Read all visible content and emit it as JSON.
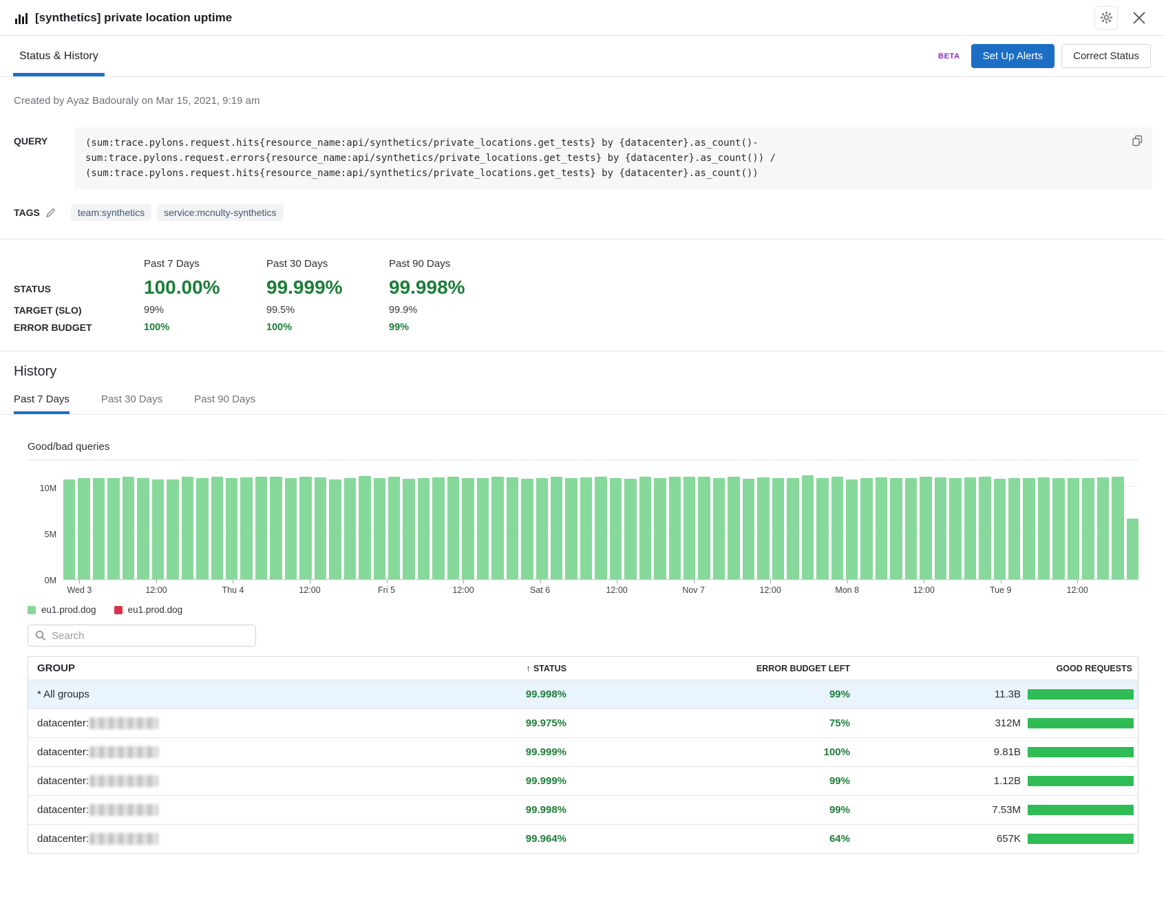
{
  "header": {
    "title": "[synthetics] private location uptime"
  },
  "toolbar": {
    "tab_label": "Status & History",
    "beta_badge": "BETA",
    "setup_alerts_label": "Set Up Alerts",
    "correct_status_label": "Correct Status"
  },
  "created_by": "Created by Ayaz Badouraly on Mar 15, 2021, 9:19 am",
  "query": {
    "label": "QUERY",
    "text": "(sum:trace.pylons.request.hits{resource_name:api/synthetics/private_locations.get_tests} by {datacenter}.as_count()-\nsum:trace.pylons.request.errors{resource_name:api/synthetics/private_locations.get_tests} by {datacenter}.as_count()) /\n(sum:trace.pylons.request.hits{resource_name:api/synthetics/private_locations.get_tests} by {datacenter}.as_count())"
  },
  "tags": {
    "label": "TAGS",
    "items": [
      "team:synthetics",
      "service:mcnulty-synthetics"
    ]
  },
  "status_summary": {
    "row_labels": {
      "status": "STATUS",
      "target": "TARGET (SLO)",
      "error_budget": "ERROR BUDGET"
    },
    "columns": [
      {
        "period": "Past 7 Days",
        "status": "100.00%",
        "target": "99%",
        "error_budget": "100%"
      },
      {
        "period": "Past 30 Days",
        "status": "99.999%",
        "target": "99.5%",
        "error_budget": "100%"
      },
      {
        "period": "Past 90 Days",
        "status": "99.998%",
        "target": "99.9%",
        "error_budget": "99%"
      }
    ]
  },
  "history": {
    "title": "History",
    "tabs": [
      {
        "label": "Past 7 Days",
        "active": true
      },
      {
        "label": "Past 30 Days",
        "active": false
      },
      {
        "label": "Past 90 Days",
        "active": false
      }
    ]
  },
  "chart_data": {
    "type": "bar",
    "title": "Good/bad queries",
    "y_tick_labels": [
      "0M",
      "5M",
      "10M"
    ],
    "ylim_millions": [
      0,
      11.5
    ],
    "grid": true,
    "legend_position": "bottom-left",
    "x_tick_labels": [
      "Wed 3",
      "12:00",
      "Thu 4",
      "12:00",
      "Fri 5",
      "12:00",
      "Sat 6",
      "12:00",
      "Nov 7",
      "12:00",
      "Mon 8",
      "12:00",
      "Tue 9",
      "12:00"
    ],
    "series": [
      {
        "name": "eu1.prod.dog",
        "role": "good-queries",
        "color": "#87d89b",
        "values_millions": [
          10.85,
          10.95,
          11.0,
          10.95,
          11.1,
          11.0,
          10.8,
          10.85,
          11.1,
          10.95,
          11.1,
          11.0,
          11.05,
          11.1,
          11.1,
          11.0,
          11.1,
          11.05,
          10.8,
          11.0,
          11.2,
          11.0,
          11.1,
          10.9,
          11.0,
          11.05,
          11.1,
          11.0,
          11.0,
          11.1,
          11.05,
          10.9,
          11.0,
          11.1,
          11.0,
          11.05,
          11.1,
          11.0,
          10.9,
          11.1,
          11.0,
          11.1,
          11.15,
          11.1,
          11.0,
          11.1,
          10.9,
          11.05,
          11.0,
          11.0,
          11.25,
          11.0,
          11.1,
          10.85,
          11.0,
          11.05,
          11.0,
          11.0,
          11.1,
          11.05,
          10.95,
          11.05,
          11.1,
          10.9,
          11.0,
          11.0,
          11.05,
          11.0,
          10.95,
          11.0,
          11.05,
          11.1,
          6.55
        ]
      },
      {
        "name": "eu1.prod.dog",
        "role": "bad-queries",
        "color": "#dc3148",
        "values_millions_uniform": 0
      }
    ]
  },
  "search": {
    "placeholder": "Search"
  },
  "table": {
    "columns": [
      "GROUP",
      "STATUS",
      "ERROR BUDGET LEFT",
      "GOOD REQUESTS"
    ],
    "sorted_by": "STATUS",
    "sort_direction": "ascending",
    "rows": [
      {
        "group": "* All groups",
        "redacted": false,
        "status": "99.998%",
        "error_budget_left": "99%",
        "good_requests": "11.3B",
        "highlight": true
      },
      {
        "group_prefix": "datacenter:",
        "redacted": true,
        "status": "99.975%",
        "error_budget_left": "75%",
        "good_requests": "312M",
        "highlight": false
      },
      {
        "group_prefix": "datacenter:",
        "redacted": true,
        "status": "99.999%",
        "error_budget_left": "100%",
        "good_requests": "9.81B",
        "highlight": false
      },
      {
        "group_prefix": "datacenter:",
        "redacted": true,
        "status": "99.999%",
        "error_budget_left": "99%",
        "good_requests": "1.12B",
        "highlight": false
      },
      {
        "group_prefix": "datacenter:",
        "redacted": true,
        "status": "99.998%",
        "error_budget_left": "99%",
        "good_requests": "7.53M",
        "highlight": false
      },
      {
        "group_prefix": "datacenter:",
        "redacted": true,
        "status": "99.964%",
        "error_budget_left": "64%",
        "good_requests": "657K",
        "highlight": false
      }
    ]
  },
  "colors": {
    "accent_blue": "#1b70c7",
    "beta_purple": "#8f25c9",
    "status_green": "#1c7e37",
    "chart_bar_green": "#87d89b",
    "chart_bar_red": "#dc3148",
    "table_bar_green": "#2fbc55",
    "highlight_row_blue": "#e9f4fc"
  }
}
